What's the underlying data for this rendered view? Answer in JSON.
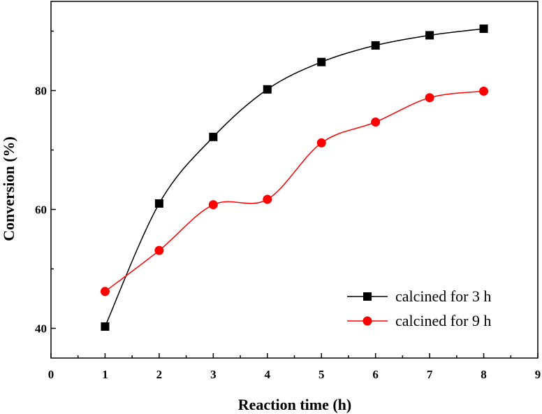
{
  "chart_data": {
    "type": "line",
    "title": "",
    "xlabel": "Reaction time (h)",
    "ylabel": "Conversion (%)",
    "xlim": [
      0,
      9
    ],
    "ylim": [
      35,
      95
    ],
    "xticks": [
      0,
      1,
      2,
      3,
      4,
      5,
      6,
      7,
      8,
      9
    ],
    "yticks": [
      40,
      60,
      80
    ],
    "grid": false,
    "legend_position": "bottom-right",
    "series": [
      {
        "name": "calcined for 3 h",
        "marker": "square",
        "color": "#000000",
        "x": [
          1,
          2,
          3,
          4,
          5,
          6,
          7,
          8
        ],
        "values": [
          40.3,
          61.0,
          72.2,
          80.2,
          84.8,
          87.6,
          89.3,
          90.4
        ]
      },
      {
        "name": "calcined for 9 h",
        "marker": "circle",
        "color": "#ff0000",
        "x": [
          1,
          2,
          3,
          4,
          5,
          6,
          7,
          8
        ],
        "values": [
          46.2,
          53.1,
          60.8,
          61.7,
          71.2,
          74.7,
          78.8,
          79.9
        ]
      }
    ]
  }
}
